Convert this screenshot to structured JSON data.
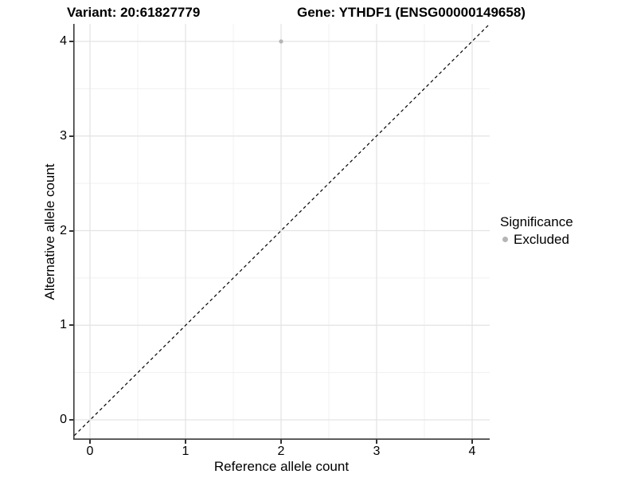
{
  "titles": {
    "variant": "Variant: 20:61827779",
    "gene": "Gene: YTHDF1 (ENSG00000149658)"
  },
  "axes": {
    "x": {
      "label": "Reference allele count",
      "ticks": [
        "0",
        "1",
        "2",
        "3",
        "4"
      ]
    },
    "y": {
      "label": "Alternative allele count",
      "ticks": [
        "0",
        "1",
        "2",
        "3",
        "4"
      ]
    }
  },
  "legend": {
    "title": "Significance",
    "items": [
      {
        "label": "Excluded",
        "color": "#b5b5b5"
      }
    ]
  },
  "colors": {
    "point": "#b5b5b5",
    "axis_line": "#3a3a3a",
    "tick": "#333333",
    "grid_major": "#e3e3e3",
    "grid_minor": "#f0f0f0",
    "identity_line": "#000000",
    "text": "#000000",
    "background": "#ffffff"
  },
  "chart_data": {
    "type": "scatter",
    "title": "Variant: 20:61827779 — Gene: YTHDF1 (ENSG00000149658)",
    "xlabel": "Reference allele count",
    "ylabel": "Alternative allele count",
    "xlim": [
      -0.2,
      4.2
    ],
    "ylim": [
      -0.2,
      4.2
    ],
    "x_ticks": [
      0,
      1,
      2,
      3,
      4
    ],
    "y_ticks": [
      0,
      1,
      2,
      3,
      4
    ],
    "minor_ticks": [
      0.5,
      1.5,
      2.5,
      3.5
    ],
    "grid": "major+minor",
    "legend_position": "right",
    "legend_title": "Significance",
    "series": [
      {
        "name": "Excluded",
        "color": "#b5b5b5",
        "points": [
          {
            "x": 2,
            "y": 4
          }
        ]
      }
    ],
    "reference_line": {
      "type": "identity y=x",
      "style": "dashed",
      "color": "#000000"
    }
  }
}
